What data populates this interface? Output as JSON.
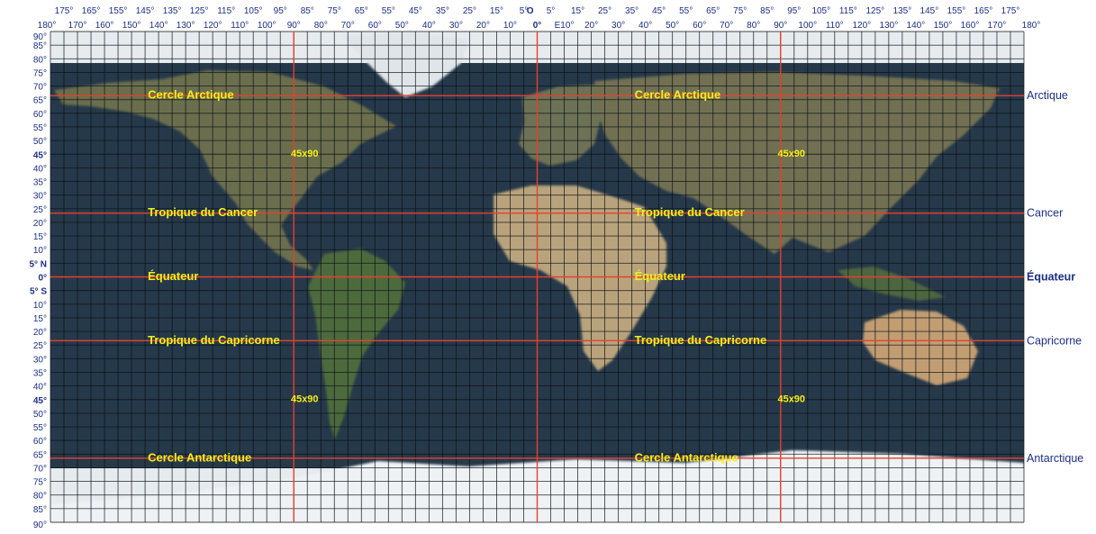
{
  "top_ticks_odd": [
    "175°",
    "165°",
    "155°",
    "145°",
    "135°",
    "125°",
    "115°",
    "105°",
    "95°",
    "85°",
    "75°",
    "65°",
    "55°",
    "45°",
    "35°",
    "25°",
    "15°",
    "5°",
    "O",
    "5°",
    "15°",
    "25°",
    "35°",
    "45°",
    "55°",
    "65°",
    "75°",
    "85°",
    "95°",
    "105°",
    "115°",
    "125°",
    "135°",
    "145°",
    "155°",
    "165°",
    "175°"
  ],
  "top_ticks_even": [
    "180°",
    "170°",
    "160°",
    "150°",
    "140°",
    "130°",
    "120°",
    "110°",
    "100°",
    "90°",
    "80°",
    "70°",
    "60°",
    "50°",
    "40°",
    "30°",
    "20°",
    "10°",
    "0°",
    "E10°",
    "20°",
    "30°",
    "40°",
    "50°",
    "60°",
    "70°",
    "80°",
    "90°",
    "100°",
    "110°",
    "120°",
    "130°",
    "140°",
    "150°",
    "160°",
    "170°",
    "180°"
  ],
  "left_ticks": [
    "90°",
    "85°",
    "80°",
    "75°",
    "70°",
    "65°",
    "60°",
    "55°",
    "50°",
    "45°",
    "40°",
    "35°",
    "30°",
    "25°",
    "20°",
    "15°",
    "10°",
    "5° N",
    "0°",
    "5° S",
    "10°",
    "15°",
    "20°",
    "25°",
    "30°",
    "35°",
    "40°",
    "45°",
    "50°",
    "55°",
    "60°",
    "65°",
    "70°",
    "75°",
    "80°",
    "85°",
    "90°"
  ],
  "parallels": [
    {
      "key": "arctic",
      "lat": 66.5,
      "left_label": "Cercle Arctique",
      "right_label": "Arctique"
    },
    {
      "key": "cancer",
      "lat": 23.4,
      "left_label": "Tropique du Cancer",
      "right_label": "Cancer"
    },
    {
      "key": "equator",
      "lat": 0,
      "left_label": "Équateur",
      "right_label": "Équateur"
    },
    {
      "key": "capricorn",
      "lat": -23.4,
      "left_label": "Tropique du Capricorne",
      "right_label": "Capricorne"
    },
    {
      "key": "antarctic",
      "lat": -66.5,
      "left_label": "Cercle Antarctique",
      "right_label": "Antarctique"
    }
  ],
  "quadrant_labels": [
    {
      "text": "45x90",
      "lon": -90,
      "lat": 45
    },
    {
      "text": "45x90",
      "lon": 90,
      "lat": 45
    },
    {
      "text": "45x90",
      "lon": -90,
      "lat": -45
    },
    {
      "text": "45x90",
      "lon": 90,
      "lat": -45
    }
  ],
  "highlight_meridians": [
    -90,
    0,
    90
  ],
  "grid_step_degrees": 5,
  "colors": {
    "ocean": "#26394a",
    "land": "#6a6f4c",
    "desert": "#c6ab7f",
    "ice": "#e6ebee",
    "grid": "#0a0f14",
    "highlight_line": "#e8402e",
    "label_yellow": "#f5ef18",
    "axis_label": "#1c2f84"
  }
}
